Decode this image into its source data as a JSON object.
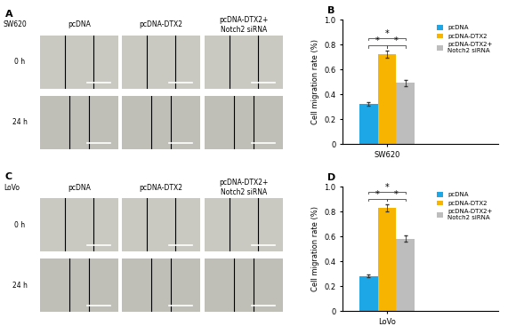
{
  "panels": [
    {
      "label": "A",
      "cell_line": "SW620",
      "columns": [
        "pcDNA",
        "pcDNA-DTX2",
        "pcDNA-DTX2+\nNotch2 siRNA"
      ],
      "rows": [
        "0 h",
        "24 h"
      ]
    },
    {
      "label": "C",
      "cell_line": "LoVo",
      "columns": [
        "pcDNA",
        "pcDNA-DTX2",
        "pcDNA-DTX2+\nNotch2 siRNA"
      ],
      "rows": [
        "0 h",
        "24 h"
      ]
    }
  ],
  "chart_data": [
    {
      "type": "bar",
      "panel_label": "B",
      "categories": [
        "SW620"
      ],
      "y_label": "Cell migration rate (%)",
      "series": [
        {
          "name": "pcDNA",
          "color": "#1ea7e6",
          "values": [
            0.32
          ],
          "errors": [
            0.015
          ]
        },
        {
          "name": "pcDNA-DTX2",
          "color": "#f7b400",
          "values": [
            0.72
          ],
          "errors": [
            0.03
          ]
        },
        {
          "name": "pcDNA-DTX2+\nNotch2 siRNA",
          "color": "#bdbdbd",
          "values": [
            0.49
          ],
          "errors": [
            0.025
          ]
        }
      ],
      "significance": [
        {
          "pair": [
            "pcDNA",
            "pcDNA-DTX2"
          ],
          "label": "*"
        },
        {
          "pair": [
            "pcDNA-DTX2",
            "pcDNA-DTX2+\nNotch2 siRNA"
          ],
          "label": "*"
        },
        {
          "pair": [
            "pcDNA",
            "pcDNA-DTX2+\nNotch2 siRNA"
          ],
          "label": "*"
        }
      ],
      "ylim": [
        0,
        1
      ],
      "yticks": [
        0,
        0.2,
        0.4,
        0.6,
        0.8,
        {
          "value": 1,
          "label": "1.0"
        }
      ],
      "legend": "upper right",
      "grid": false
    },
    {
      "type": "bar",
      "panel_label": "D",
      "categories": [
        "LoVo"
      ],
      "y_label": "Cell migration rate (%)",
      "series": [
        {
          "name": "pcDNA",
          "color": "#1ea7e6",
          "values": [
            0.28
          ],
          "errors": [
            0.012
          ]
        },
        {
          "name": "pcDNA-DTX2",
          "color": "#f7b400",
          "values": [
            0.83
          ],
          "errors": [
            0.03
          ]
        },
        {
          "name": "pcDNA-DTX2+\nNotch2 siRNA",
          "color": "#bdbdbd",
          "values": [
            0.58
          ],
          "errors": [
            0.025
          ]
        }
      ],
      "significance": [
        {
          "pair": [
            "pcDNA",
            "pcDNA-DTX2"
          ],
          "label": "*"
        },
        {
          "pair": [
            "pcDNA-DTX2",
            "pcDNA-DTX2+\nNotch2 siRNA"
          ],
          "label": "*"
        },
        {
          "pair": [
            "pcDNA",
            "pcDNA-DTX2+\nNotch2 siRNA"
          ],
          "label": "*"
        }
      ],
      "ylim": [
        0,
        1
      ],
      "yticks": [
        0,
        0.2,
        0.4,
        0.6,
        0.8,
        {
          "value": 1,
          "label": "1.0"
        }
      ],
      "legend": "upper right",
      "grid": false
    }
  ]
}
